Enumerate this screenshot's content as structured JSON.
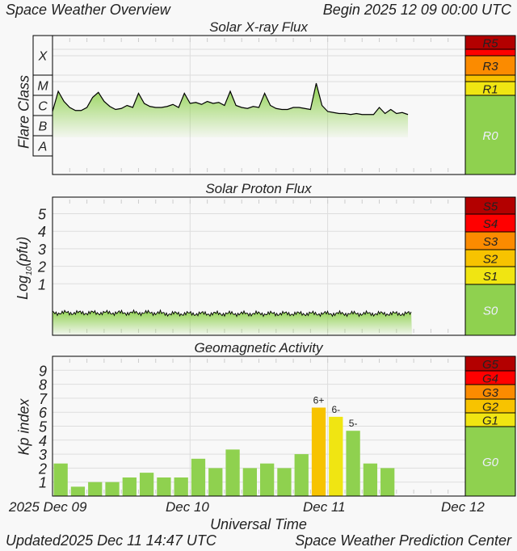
{
  "header": {
    "title": "Space Weather Overview",
    "begin_label": "Begin",
    "begin_value": "2025 12 09 00:00 UTC"
  },
  "footer": {
    "updated_label": "Updated",
    "updated_value": "2025 Dec 11 14:47 UTC",
    "org": "Space Weather Prediction Center"
  },
  "x_axis": {
    "label": "Universal Time",
    "ticks": [
      "2025 Dec 09",
      "Dec 10",
      "Dec 11",
      "Dec 12"
    ]
  },
  "colors": {
    "level0": "#8fd14f",
    "level1": "#f0e512",
    "level2": "#f7c300",
    "level3": "#fb8b00",
    "level4": "#ff0000",
    "level5": "#b30000",
    "plot_bg": "#f8f8f8",
    "grid": "#dddddd"
  },
  "chart_data": [
    {
      "type": "area",
      "title": "Solar X-ray Flux",
      "ylabel": "Flare Class",
      "yscale": "log",
      "class_labels": [
        "X",
        "M",
        "C",
        "B",
        "A"
      ],
      "scale_labels": [
        "R5",
        "R3",
        "R1",
        "R0"
      ],
      "x_start": "2025-12-09 00:00 UTC",
      "x_step": "1 hour",
      "values_log10_wm2": [
        -5.8,
        -4.8,
        -5.3,
        -5.6,
        -5.75,
        -5.75,
        -5.6,
        -5.1,
        -4.85,
        -5.3,
        -5.55,
        -5.7,
        -5.65,
        -5.5,
        -5.6,
        -4.9,
        -5.4,
        -5.55,
        -5.6,
        -5.6,
        -5.55,
        -5.45,
        -5.6,
        -4.9,
        -5.4,
        -5.35,
        -5.45,
        -5.3,
        -5.4,
        -5.35,
        -5.5,
        -4.8,
        -5.5,
        -5.6,
        -5.65,
        -5.55,
        -5.6,
        -4.9,
        -5.5,
        -5.65,
        -5.7,
        -5.7,
        -5.6,
        -5.6,
        -5.65,
        -5.7,
        -4.4,
        -5.5,
        -5.8,
        -5.85,
        -5.9,
        -5.9,
        -5.95,
        -5.9,
        -5.95,
        -5.95,
        -5.95,
        -5.6,
        -5.9,
        -5.7,
        -5.9,
        -5.85,
        -5.95
      ]
    },
    {
      "type": "area",
      "title": "Solar Proton Flux",
      "ylabel": "Log10(pfu)",
      "ylabel_main": "Log",
      "ylabel_sub": "10",
      "ylabel_unit": "(pfu)",
      "y_ticks": [
        "1",
        "2",
        "3",
        "4",
        "5"
      ],
      "scale_labels": [
        "S5",
        "S4",
        "S3",
        "S2",
        "S1",
        "S0"
      ],
      "x_start": "2025-12-09 00:00 UTC",
      "x_step": "1 hour",
      "approx_log10_pfu": -0.7
    },
    {
      "type": "bar",
      "title": "Geomagnetic Activity",
      "ylabel": "Kp index",
      "y_ticks": [
        "1",
        "2",
        "3",
        "4",
        "5",
        "6",
        "7",
        "8",
        "9"
      ],
      "ylim": [
        0,
        10
      ],
      "scale_labels": [
        "G5",
        "G4",
        "G3",
        "G2",
        "G1",
        "G0"
      ],
      "x_start": "2025-12-09 00:00 UTC",
      "x_step": "3 hours",
      "values": [
        2.33,
        0.67,
        1,
        1,
        1.33,
        1.67,
        1.33,
        1.33,
        2.67,
        2,
        3.33,
        2,
        2.33,
        2,
        3,
        6.33,
        5.67,
        4.67,
        2.33,
        2
      ],
      "bar_labels": {
        "15": "6+",
        "16": "6-",
        "17": "5-"
      }
    }
  ]
}
